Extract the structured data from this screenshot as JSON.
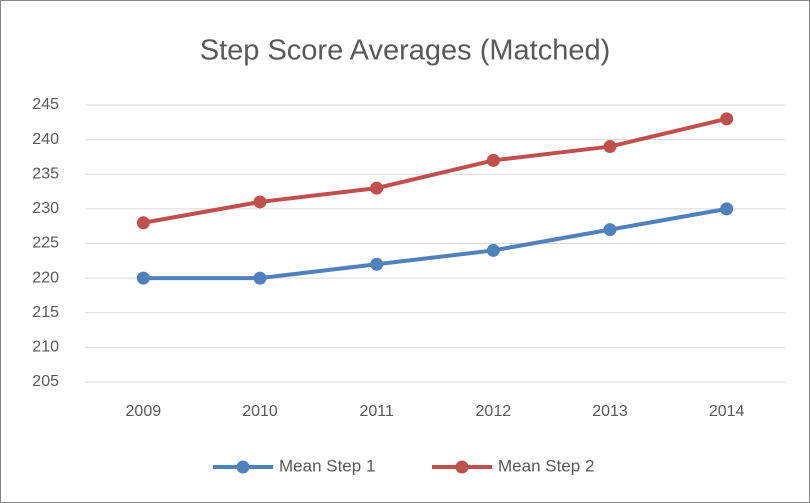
{
  "chart_data": {
    "type": "line",
    "title": "Step Score Averages (Matched)",
    "categories": [
      "2009",
      "2010",
      "2011",
      "2012",
      "2013",
      "2014"
    ],
    "series": [
      {
        "name": "Mean Step 1",
        "color": "#4f81bd",
        "values": [
          220,
          220,
          222,
          224,
          227,
          230
        ]
      },
      {
        "name": "Mean Step 2",
        "color": "#c0504d",
        "values": [
          228,
          231,
          233,
          237,
          239,
          243
        ]
      }
    ],
    "ylim": [
      205,
      245
    ],
    "yticks": [
      205,
      210,
      215,
      220,
      225,
      230,
      235,
      240,
      245
    ],
    "grid": true,
    "legend": "bottom"
  }
}
